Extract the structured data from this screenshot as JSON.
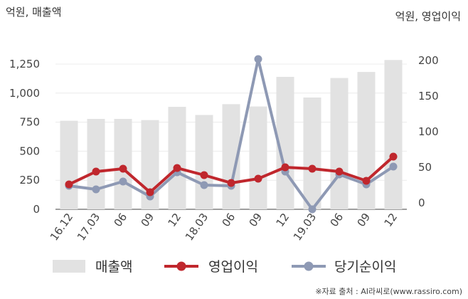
{
  "chart_data": {
    "type": "bar",
    "left_axis_unit": "억원, 매출액",
    "right_axis_unit": "억원, 영업이익",
    "categories": [
      "16.12",
      "17.03",
      "06",
      "09",
      "12",
      "18.03",
      "06",
      "09",
      "12",
      "19.03",
      "06",
      "09",
      "12"
    ],
    "left_ticks": [
      "0",
      "250",
      "500",
      "750",
      "1,000",
      "1,250"
    ],
    "right_ticks": [
      "0",
      "50",
      "100",
      "150",
      "200"
    ],
    "ylim_left": [
      0,
      1250
    ],
    "ylim_right": [
      0,
      200
    ],
    "series": [
      {
        "name": "매출액",
        "type": "bar",
        "axis": "left",
        "color": "#e2e2e2",
        "values": [
          762,
          778,
          778,
          768,
          882,
          812,
          905,
          885,
          1140,
          962,
          1130,
          1182,
          1285
        ]
      },
      {
        "name": "영업이익",
        "type": "line",
        "axis": "right",
        "color": "#c0272d",
        "values": [
          26,
          44,
          48,
          15,
          49,
          39,
          28,
          34,
          50,
          48,
          44,
          31,
          65
        ]
      },
      {
        "name": "당기순이익",
        "type": "line",
        "axis": "right",
        "color": "#8e99b4",
        "values": [
          24,
          19,
          30,
          9,
          43,
          25,
          24,
          202,
          44,
          -9,
          40,
          26,
          51
        ]
      }
    ],
    "grid": true,
    "legend_position": "bottom"
  },
  "source_note": "※자료 출처 : AI라씨로(www.rassiro.com)"
}
